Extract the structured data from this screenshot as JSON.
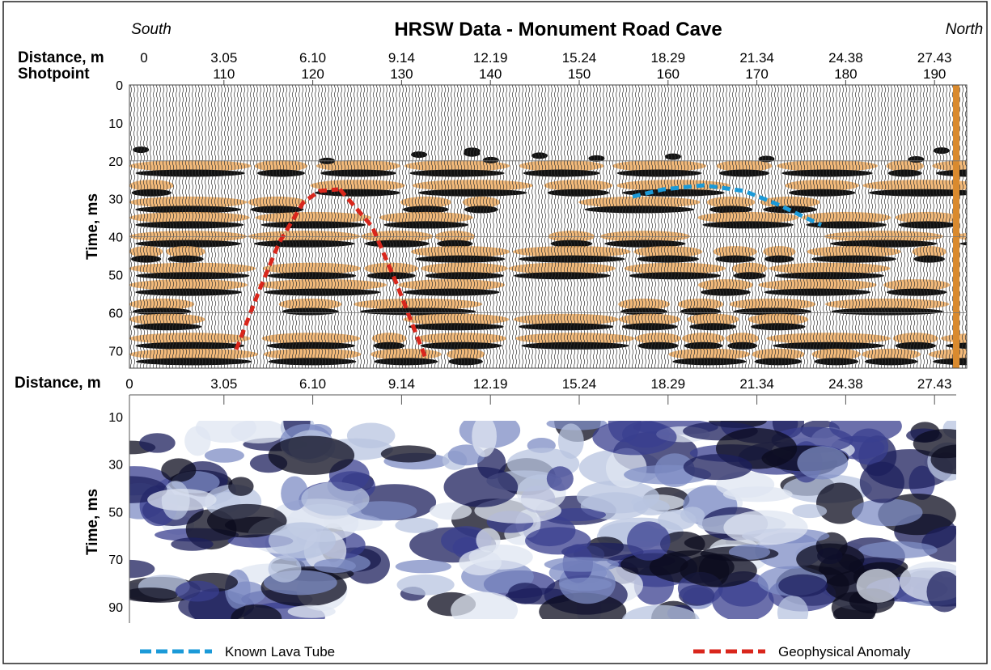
{
  "header": {
    "title": "HRSW Data - Monument Road Cave",
    "left": "South",
    "right": "North"
  },
  "top_panel": {
    "distance_label": "Distance, m",
    "shotpoint_label": "Shotpoint",
    "time_label": "Time, ms",
    "distance_ticks": [
      "0",
      "3.05",
      "6.10",
      "9.14",
      "12.19",
      "15.24",
      "18.29",
      "21.34",
      "24.38",
      "27.43"
    ],
    "shotpoint_ticks": [
      "110",
      "120",
      "130",
      "140",
      "150",
      "160",
      "170",
      "180",
      "190"
    ],
    "time_ticks": [
      "0",
      "10",
      "20",
      "30",
      "40",
      "50",
      "60",
      "70"
    ]
  },
  "bottom_panel": {
    "distance_label": "Distance, m",
    "time_label": "Time, ms",
    "distance_ticks": [
      "0",
      "3.05",
      "6.10",
      "9.14",
      "12.19",
      "15.24",
      "18.29",
      "21.34",
      "24.38",
      "27.43"
    ],
    "time_ticks": [
      "10",
      "30",
      "50",
      "70",
      "90"
    ]
  },
  "legend": {
    "known": "Known Lava Tube",
    "anomaly": "Geophysical Anomaly"
  }
}
